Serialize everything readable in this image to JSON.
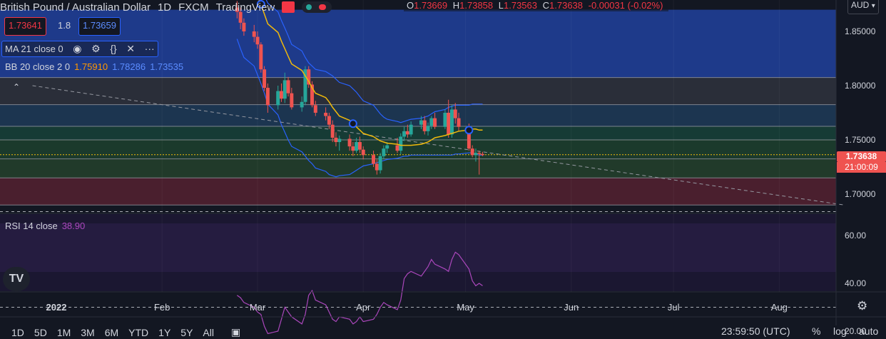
{
  "header": {
    "symbol": "British Pound / Australian Dollar",
    "interval": "1D",
    "exchange": "FXCM",
    "source": "TradingView"
  },
  "ohlc": {
    "o_label": "O",
    "o": "1.73669",
    "h_label": "H",
    "h": "1.73858",
    "l_label": "L",
    "l": "1.73563",
    "c_label": "C",
    "c": "1.73638",
    "change": "-0.00031 (-0.02%)"
  },
  "quote": {
    "sell": "1.73641",
    "spread": "1.8",
    "buy": "1.73659"
  },
  "currency": "AUD",
  "indicators": {
    "ma": "MA 21 close 0",
    "bb_label": "BB 20 close 2 0",
    "bb_basis": "1.75910",
    "bb_upper": "1.78286",
    "bb_lower": "1.73535",
    "rsi_label": "RSI 14 close",
    "rsi_value": "38.90"
  },
  "price_axis": {
    "ticks": [
      "1.85000",
      "1.80000",
      "1.75000",
      "1.70000"
    ],
    "last": "1.73638",
    "countdown": "21:00:09"
  },
  "rsi_axis": {
    "ticks": [
      "60.00",
      "40.00",
      "20.00"
    ]
  },
  "time_axis": [
    "2022",
    "Feb",
    "Mar",
    "Apr",
    "May",
    "Jun",
    "Jul",
    "Aug"
  ],
  "timeframes": [
    "1D",
    "5D",
    "1M",
    "3M",
    "6M",
    "YTD",
    "1Y",
    "5Y",
    "All"
  ],
  "footer": {
    "clock": "23:59:50 (UTC)",
    "percent": "%",
    "log": "log",
    "auto": "auto"
  },
  "colors": {
    "bg": "#131722",
    "up": "#26a69a",
    "down": "#ef5350",
    "ma": "#f0b90b",
    "bb": "#2962ff",
    "rsi": "#9c27b0"
  },
  "icons": [
    "eye-icon",
    "gear-icon",
    "braces-icon",
    "close-icon",
    "more-icon",
    "chevron-up-icon",
    "settings-icon",
    "snapshot-icon",
    "tv-logo-icon"
  ],
  "chart_data": {
    "type": "candlestick",
    "x": [
      "2022-02-23",
      "2022-02-24",
      "2022-02-25",
      "2022-02-28",
      "2022-03-01",
      "2022-03-02",
      "2022-03-03",
      "2022-03-04",
      "2022-03-07",
      "2022-03-08",
      "2022-03-09",
      "2022-03-10",
      "2022-03-11",
      "2022-03-14",
      "2022-03-15",
      "2022-03-16",
      "2022-03-17",
      "2022-03-18",
      "2022-03-21",
      "2022-03-22",
      "2022-03-23",
      "2022-03-24",
      "2022-03-25",
      "2022-03-28",
      "2022-03-29",
      "2022-03-30",
      "2022-03-31",
      "2022-04-01",
      "2022-04-04",
      "2022-04-05",
      "2022-04-06",
      "2022-04-07",
      "2022-04-08",
      "2022-04-11",
      "2022-04-12",
      "2022-04-13",
      "2022-04-14",
      "2022-04-15",
      "2022-04-18",
      "2022-04-19",
      "2022-04-20",
      "2022-04-21",
      "2022-04-22",
      "2022-04-25",
      "2022-04-26",
      "2022-04-27",
      "2022-04-28",
      "2022-04-29",
      "2022-05-02",
      "2022-05-03",
      "2022-05-04",
      "2022-05-05",
      "2022-05-06"
    ],
    "ohlc": [
      [
        1.872,
        1.878,
        1.862,
        1.868
      ],
      [
        1.868,
        1.872,
        1.852,
        1.858
      ],
      [
        1.858,
        1.862,
        1.846,
        1.85
      ],
      [
        1.85,
        1.856,
        1.84,
        1.845
      ],
      [
        1.845,
        1.85,
        1.834,
        1.838
      ],
      [
        1.838,
        1.84,
        1.812,
        1.815
      ],
      [
        1.815,
        1.818,
        1.795,
        1.798
      ],
      [
        1.798,
        1.802,
        1.775,
        1.782
      ],
      [
        1.782,
        1.8,
        1.778,
        1.795
      ],
      [
        1.795,
        1.802,
        1.785,
        1.788
      ],
      [
        1.788,
        1.812,
        1.784,
        1.805
      ],
      [
        1.805,
        1.808,
        1.79,
        1.793
      ],
      [
        1.793,
        1.798,
        1.778,
        1.78
      ],
      [
        1.78,
        1.79,
        1.776,
        1.785
      ],
      [
        1.785,
        1.818,
        1.782,
        1.815
      ],
      [
        1.815,
        1.818,
        1.798,
        1.801
      ],
      [
        1.801,
        1.804,
        1.78,
        1.782
      ],
      [
        1.782,
        1.786,
        1.772,
        1.775
      ],
      [
        1.775,
        1.78,
        1.768,
        1.772
      ],
      [
        1.772,
        1.775,
        1.76,
        1.764
      ],
      [
        1.764,
        1.768,
        1.748,
        1.752
      ],
      [
        1.752,
        1.757,
        1.744,
        1.748
      ],
      [
        1.748,
        1.754,
        1.74,
        1.751
      ],
      [
        1.751,
        1.755,
        1.74,
        1.744
      ],
      [
        1.744,
        1.748,
        1.735,
        1.74
      ],
      [
        1.74,
        1.752,
        1.738,
        1.748
      ],
      [
        1.748,
        1.753,
        1.738,
        1.741
      ],
      [
        1.741,
        1.744,
        1.732,
        1.736
      ],
      [
        1.736,
        1.74,
        1.725,
        1.728
      ],
      [
        1.728,
        1.732,
        1.718,
        1.722
      ],
      [
        1.722,
        1.738,
        1.719,
        1.735
      ],
      [
        1.735,
        1.745,
        1.732,
        1.742
      ],
      [
        1.742,
        1.748,
        1.738,
        1.745
      ],
      [
        1.745,
        1.752,
        1.738,
        1.74
      ],
      [
        1.74,
        1.756,
        1.737,
        1.753
      ],
      [
        1.753,
        1.762,
        1.749,
        1.758
      ],
      [
        1.758,
        1.764,
        1.752,
        1.755
      ],
      [
        1.755,
        1.767,
        1.753,
        1.764
      ],
      [
        1.764,
        1.772,
        1.76,
        1.768
      ],
      [
        1.768,
        1.772,
        1.755,
        1.758
      ],
      [
        1.758,
        1.766,
        1.754,
        1.763
      ],
      [
        1.763,
        1.772,
        1.76,
        1.77
      ],
      [
        1.77,
        1.775,
        1.76,
        1.762
      ],
      [
        1.762,
        1.778,
        1.76,
        1.775
      ],
      [
        1.775,
        1.787,
        1.752,
        1.755
      ],
      [
        1.755,
        1.782,
        1.752,
        1.778
      ],
      [
        1.778,
        1.784,
        1.765,
        1.77
      ],
      [
        1.77,
        1.775,
        1.758,
        1.762
      ],
      [
        1.762,
        1.765,
        1.74,
        1.742
      ],
      [
        1.742,
        1.745,
        1.734,
        1.736
      ],
      [
        1.736,
        1.742,
        1.73,
        1.738
      ],
      [
        1.738,
        1.74,
        1.718,
        1.737
      ],
      [
        1.737,
        1.739,
        1.735,
        1.736
      ]
    ],
    "ma21": [
      1.902,
      1.898,
      1.893,
      1.888,
      1.882,
      1.875,
      1.866,
      1.857,
      1.849,
      1.841,
      1.834,
      1.827,
      1.82,
      1.814,
      1.809,
      1.804,
      1.798,
      1.793,
      1.789,
      1.785,
      1.78,
      1.776,
      1.772,
      1.768,
      1.765,
      1.762,
      1.759,
      1.756,
      1.753,
      1.751,
      1.749,
      1.748,
      1.747,
      1.746,
      1.745,
      1.745,
      1.745,
      1.745,
      1.746,
      1.747,
      1.748,
      1.75,
      1.752,
      1.754,
      1.755,
      1.756,
      1.757,
      1.758,
      1.759,
      1.76,
      1.76,
      1.759,
      1.759
    ],
    "bb_upper": [
      1.922,
      1.918,
      1.912,
      1.905,
      1.898,
      1.89,
      1.883,
      1.876,
      1.868,
      1.86,
      1.853,
      1.846,
      1.838,
      1.832,
      1.826,
      1.821,
      1.818,
      1.815,
      1.813,
      1.811,
      1.809,
      1.806,
      1.803,
      1.8,
      1.797,
      1.794,
      1.79,
      1.786,
      1.782,
      1.778,
      1.774,
      1.771,
      1.769,
      1.767,
      1.766,
      1.767,
      1.768,
      1.769,
      1.77,
      1.771,
      1.772,
      1.774,
      1.776,
      1.778,
      1.78,
      1.781,
      1.782,
      1.782,
      1.782,
      1.783,
      1.783,
      1.783,
      1.783
    ],
    "bb_lower": [
      1.843,
      1.834,
      1.826,
      1.818,
      1.81,
      1.802,
      1.793,
      1.783,
      1.773,
      1.764,
      1.757,
      1.75,
      1.744,
      1.739,
      1.735,
      1.731,
      1.728,
      1.724,
      1.721,
      1.718,
      1.717,
      1.716,
      1.717,
      1.718,
      1.72,
      1.722,
      1.724,
      1.726,
      1.728,
      1.729,
      1.73,
      1.731,
      1.732,
      1.733,
      1.734,
      1.735,
      1.735,
      1.736,
      1.736,
      1.736,
      1.736,
      1.736,
      1.736,
      1.736,
      1.736,
      1.736,
      1.737,
      1.737,
      1.738,
      1.738,
      1.737,
      1.736,
      1.736
    ],
    "rsi": [
      35,
      34,
      32,
      30,
      28,
      27,
      22,
      19,
      20,
      25,
      30,
      28,
      26,
      23,
      27,
      35,
      37,
      33,
      31,
      28,
      25,
      24,
      26,
      25,
      23,
      24,
      26,
      24,
      25,
      27,
      30,
      32,
      31,
      29,
      33,
      42,
      44,
      45,
      43,
      45,
      47,
      50,
      48,
      46,
      45,
      50,
      53,
      52,
      46,
      41,
      39,
      40,
      39
    ],
    "price_ylim": [
      1.69,
      1.87
    ],
    "rsi_ylim": [
      13,
      73
    ],
    "rsi_levels": [
      70,
      30
    ],
    "zones": [
      {
        "from": 1.8075,
        "to": 1.87,
        "color": "#1e3a8a"
      },
      {
        "from": 1.7825,
        "to": 1.8075,
        "color": "#2a2e39"
      },
      {
        "from": 1.7625,
        "to": 1.7825,
        "color": "#1c3550"
      },
      {
        "from": 1.75,
        "to": 1.7625,
        "color": "#163b35"
      },
      {
        "from": 1.7325,
        "to": 1.75,
        "color": "#1b3a2c"
      },
      {
        "from": 1.715,
        "to": 1.7325,
        "color": "#213a2a"
      },
      {
        "from": 1.69,
        "to": 1.715,
        "color": "#4a1f2e"
      }
    ],
    "levels": [
      1.8075,
      1.7825,
      1.7625,
      1.75,
      1.7325,
      1.715,
      1.69
    ],
    "trendline": [
      [
        "2021-12-25",
        1.8
      ],
      [
        "2022-08-20",
        1.69
      ]
    ],
    "last_price": 1.73638
  }
}
